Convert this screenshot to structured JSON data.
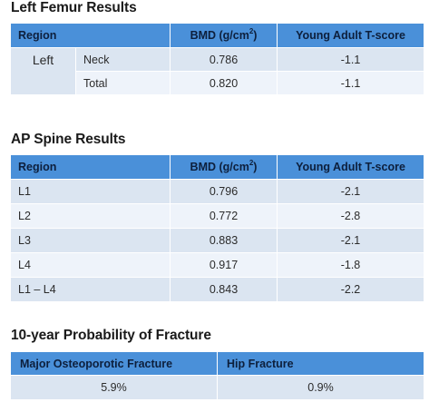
{
  "femur": {
    "title": "Left Femur Results",
    "headers": {
      "region": "Region",
      "bmd": "BMD (g/cm",
      "bmd_sup": "2",
      "bmd_close": ")",
      "tscore": "Young Adult T-score"
    },
    "side": "Left",
    "rows": [
      {
        "site": "Neck",
        "bmd": "0.786",
        "tscore": "-1.1"
      },
      {
        "site": "Total",
        "bmd": "0.820",
        "tscore": "-1.1"
      }
    ]
  },
  "spine": {
    "title": "AP Spine Results",
    "headers": {
      "region": "Region",
      "bmd": "BMD (g/cm",
      "bmd_sup": "2",
      "bmd_close": ")",
      "tscore": "Young Adult T-score"
    },
    "rows": [
      {
        "region": "L1",
        "bmd": "0.796",
        "tscore": "-2.1"
      },
      {
        "region": "L2",
        "bmd": "0.772",
        "tscore": "-2.8"
      },
      {
        "region": "L3",
        "bmd": "0.883",
        "tscore": "-2.1"
      },
      {
        "region": "L4",
        "bmd": "0.917",
        "tscore": "-1.8"
      },
      {
        "region": "L1 – L4",
        "bmd": "0.843",
        "tscore": "-2.2"
      }
    ]
  },
  "probability": {
    "title": "10-year Probability of Fracture",
    "headers": {
      "major": "Major Osteoporotic Fracture",
      "hip": "Hip Fracture"
    },
    "values": {
      "major": "5.9%",
      "hip": "0.9%"
    }
  },
  "colors": {
    "header_bg": "#4a90d9",
    "row_dark": "#dbe5f1",
    "row_light": "#eef3fa"
  }
}
